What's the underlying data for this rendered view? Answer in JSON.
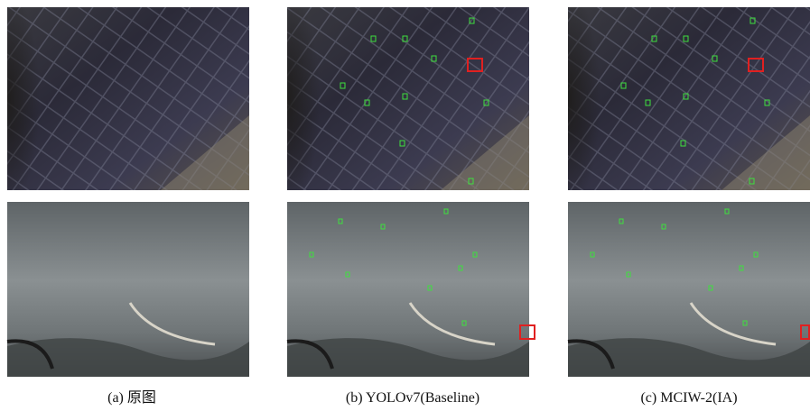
{
  "figure": {
    "panels": [
      {
        "caption": "(a) 原图"
      },
      {
        "caption": "(b) YOLOv7(Baseline)"
      },
      {
        "caption": "(c) MCIW-2(IA)"
      }
    ]
  }
}
